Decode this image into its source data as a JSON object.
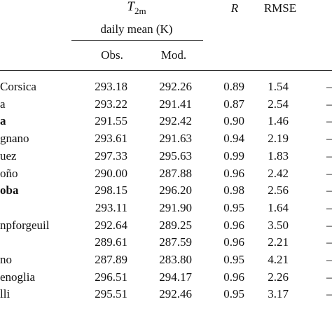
{
  "header": {
    "variable": "T",
    "variable_sub": "2m",
    "variable_desc": "daily mean (K)",
    "r": "R",
    "rmse": "RMSE",
    "obs": "Obs.",
    "mod": "Mod."
  },
  "table": {
    "trailing": "–",
    "rows": [
      {
        "station": "Corsica",
        "obs": "293.18",
        "mod": "292.26",
        "r": "0.89",
        "rmse": "1.54",
        "bold": false
      },
      {
        "station": "a",
        "obs": "293.22",
        "mod": "291.41",
        "r": "0.87",
        "rmse": "2.54",
        "bold": false
      },
      {
        "station": "a",
        "obs": "291.55",
        "mod": "292.42",
        "r": "0.90",
        "rmse": "1.46",
        "bold": true
      },
      {
        "station": "gnano",
        "obs": "293.61",
        "mod": "291.63",
        "r": "0.94",
        "rmse": "2.19",
        "bold": false
      },
      {
        "station": "uez",
        "obs": "297.33",
        "mod": "295.63",
        "r": "0.99",
        "rmse": "1.83",
        "bold": false
      },
      {
        "station": "oño",
        "obs": "290.00",
        "mod": "287.88",
        "r": "0.96",
        "rmse": "2.42",
        "bold": false
      },
      {
        "station": "oba",
        "obs": "298.15",
        "mod": "296.20",
        "r": "0.98",
        "rmse": "2.56",
        "bold": true
      },
      {
        "station": null,
        "obs": "293.11",
        "mod": "291.90",
        "r": "0.95",
        "rmse": "1.64",
        "bold": false
      },
      {
        "station": "npforgeuil",
        "obs": "292.64",
        "mod": "289.25",
        "r": "0.96",
        "rmse": "3.50",
        "bold": false
      },
      {
        "station": null,
        "obs": "289.61",
        "mod": "287.59",
        "r": "0.96",
        "rmse": "2.21",
        "bold": false
      },
      {
        "station": "no",
        "obs": "287.89",
        "mod": "283.80",
        "r": "0.95",
        "rmse": "4.21",
        "bold": false
      },
      {
        "station": "enoglia",
        "obs": "296.51",
        "mod": "294.17",
        "r": "0.96",
        "rmse": "2.26",
        "bold": false
      },
      {
        "station": "lli",
        "obs": "295.51",
        "mod": "292.46",
        "r": "0.95",
        "rmse": "3.17",
        "bold": false
      }
    ]
  }
}
